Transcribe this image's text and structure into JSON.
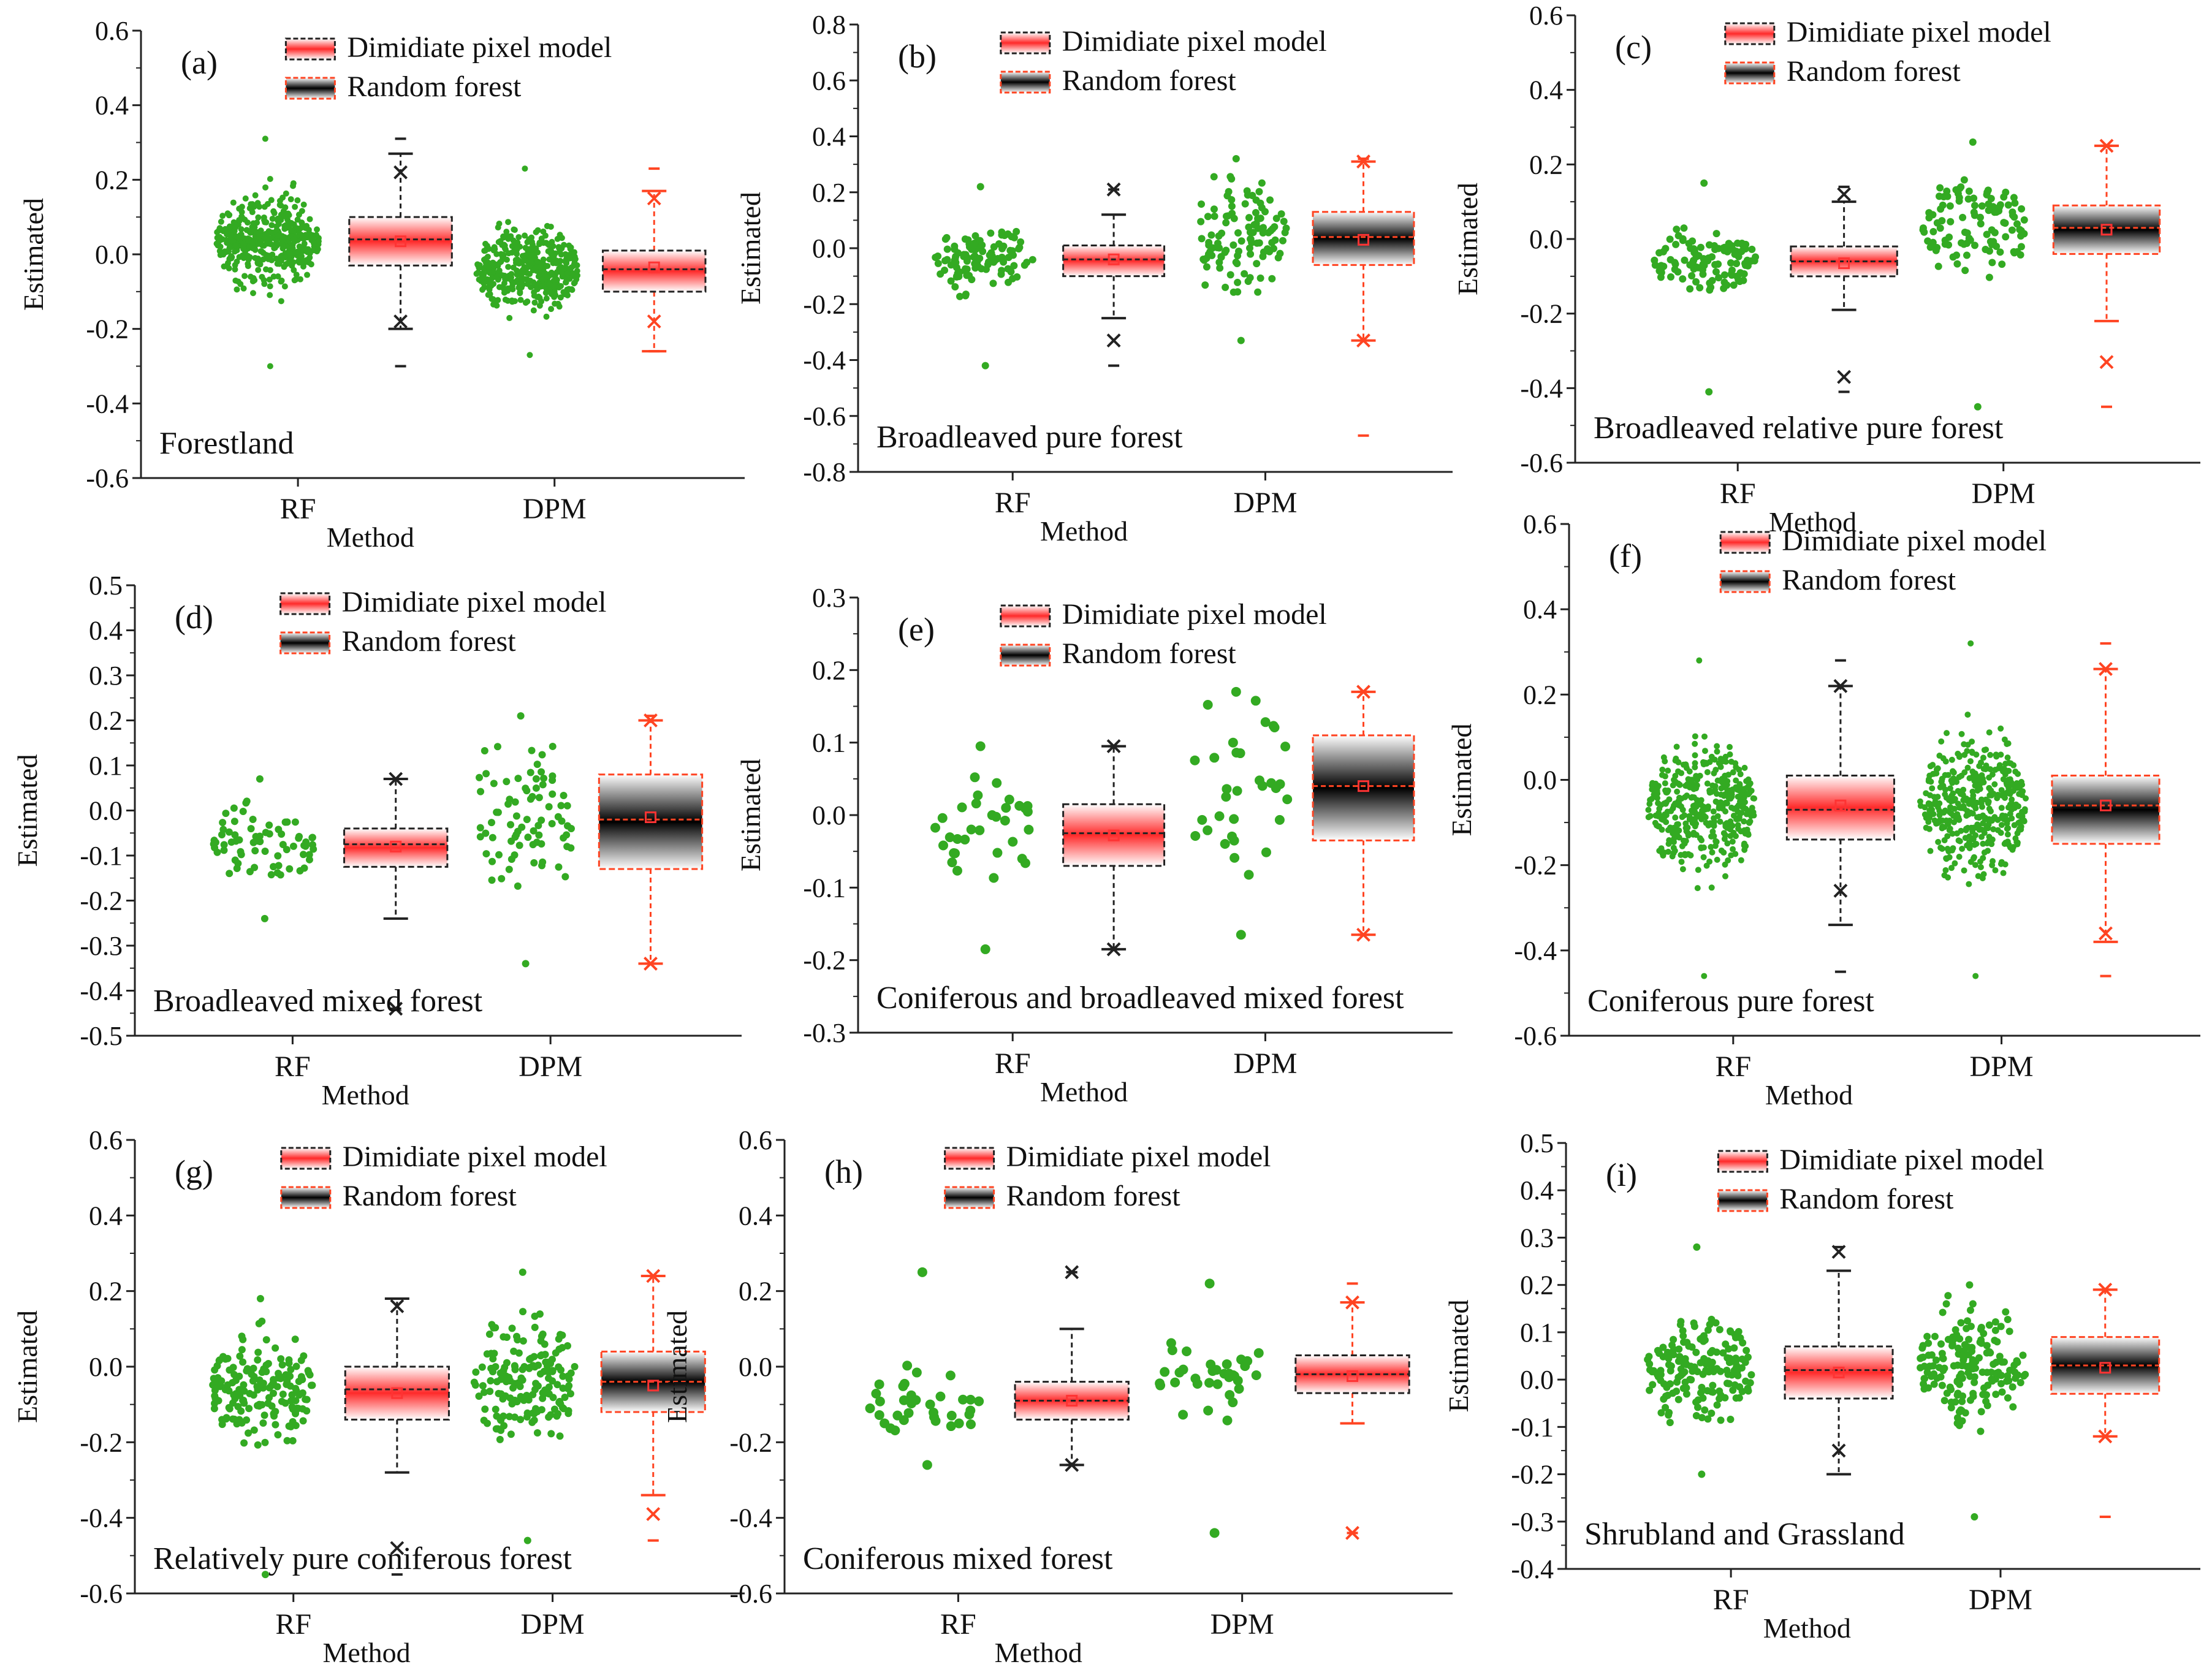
{
  "legend": {
    "dpm_label": "Dimidiate pixel model",
    "rf_label": "Random forest"
  },
  "x_axis_title": "Method",
  "y_axis_title": "Estimated",
  "colors": {
    "scatter": "#33aa22",
    "red": "#ff3333",
    "black": "#111111",
    "dpm_whisker": "#ff4422"
  },
  "chart_data": [
    {
      "tag": "(a)",
      "title": "Forestland",
      "type": "box-scatter",
      "categories": [
        "RF",
        "DPM"
      ],
      "yticks": [
        "0.6",
        "0.4",
        "0.2",
        "0.0",
        "-0.2",
        "-0.4",
        "-0.6"
      ],
      "ylim": [
        -0.6,
        0.6
      ],
      "rf": {
        "mean": 0.035,
        "q1": -0.03,
        "median": 0.04,
        "q3": 0.1,
        "lo": -0.2,
        "hi": 0.27,
        "x1": -0.18,
        "x99": 0.22,
        "min": -0.3,
        "max": 0.31,
        "lo_points": -0.3,
        "hi_points": 0.31,
        "n": 420,
        "style": "red"
      },
      "dpm": {
        "mean": -0.035,
        "q1": -0.1,
        "median": -0.04,
        "q3": 0.01,
        "lo": -0.26,
        "hi": 0.17,
        "x1": -0.18,
        "x99": 0.15,
        "min": -0.26,
        "max": 0.23,
        "lo_points": -0.27,
        "hi_points": 0.23,
        "n": 420,
        "style": "red"
      }
    },
    {
      "tag": "(b)",
      "title": "Broadleaved pure forest",
      "type": "box-scatter",
      "categories": [
        "RF",
        "DPM"
      ],
      "yticks": [
        "0.8",
        "0.6",
        "0.4",
        "0.2",
        "0.0",
        "-0.2",
        "-0.4",
        "-0.6",
        "-0.8"
      ],
      "ylim": [
        -0.8,
        0.8
      ],
      "rf": {
        "mean": -0.04,
        "q1": -0.1,
        "median": -0.04,
        "q3": 0.01,
        "lo": -0.25,
        "hi": 0.12,
        "x1": -0.33,
        "x99": 0.21,
        "min": -0.42,
        "max": 0.21,
        "lo_points": -0.42,
        "hi_points": 0.22,
        "n": 110,
        "style": "red"
      },
      "dpm": {
        "mean": 0.03,
        "q1": -0.06,
        "median": 0.04,
        "q3": 0.13,
        "lo": -0.33,
        "hi": 0.31,
        "x1": -0.33,
        "x99": 0.31,
        "min": -0.67,
        "max": 0.32,
        "lo_points": -0.33,
        "hi_points": 0.32,
        "n": 110,
        "style": "black"
      }
    },
    {
      "tag": "(c)",
      "title": "Broadleaved relative pure forest",
      "type": "box-scatter",
      "categories": [
        "RF",
        "DPM"
      ],
      "yticks": [
        "0.6",
        "0.4",
        "0.2",
        "0.0",
        "-0.2",
        "-0.4",
        "-0.6"
      ],
      "ylim": [
        -0.6,
        0.6
      ],
      "rf": {
        "mean": -0.065,
        "q1": -0.1,
        "median": -0.06,
        "q3": -0.02,
        "lo": -0.19,
        "hi": 0.1,
        "x1": -0.37,
        "x99": 0.12,
        "min": -0.41,
        "max": 0.14,
        "lo_points": -0.41,
        "hi_points": 0.15,
        "n": 110,
        "style": "red"
      },
      "dpm": {
        "mean": 0.025,
        "q1": -0.04,
        "median": 0.03,
        "q3": 0.09,
        "lo": -0.22,
        "hi": 0.25,
        "x1": -0.33,
        "x99": 0.25,
        "min": -0.45,
        "max": 0.25,
        "lo_points": -0.45,
        "hi_points": 0.26,
        "n": 110,
        "style": "black"
      }
    },
    {
      "tag": "(d)",
      "title": "Broadleaved mixed forest",
      "type": "box-scatter",
      "categories": [
        "RF",
        "DPM"
      ],
      "yticks": [
        "0.5",
        "0.4",
        "0.3",
        "0.2",
        "0.1",
        "0.0",
        "-0.1",
        "-0.2",
        "-0.3",
        "-0.4",
        "-0.5"
      ],
      "ylim": [
        -0.5,
        0.5
      ],
      "rf": {
        "mean": -0.08,
        "q1": -0.125,
        "median": -0.075,
        "q3": -0.04,
        "lo": -0.24,
        "hi": 0.07,
        "x1": -0.44,
        "x99": 0.07,
        "min": -0.44,
        "max": 0.07,
        "lo_points": -0.24,
        "hi_points": 0.07,
        "n": 70,
        "style": "red"
      },
      "dpm": {
        "mean": -0.015,
        "q1": -0.13,
        "median": -0.02,
        "q3": 0.08,
        "lo": -0.34,
        "hi": 0.2,
        "x1": -0.34,
        "x99": 0.2,
        "min": -0.34,
        "max": 0.21,
        "lo_points": -0.34,
        "hi_points": 0.21,
        "n": 80,
        "style": "black"
      }
    },
    {
      "tag": "(e)",
      "title": "Coniferous and broadleaved mixed forest",
      "type": "box-scatter",
      "categories": [
        "RF",
        "DPM"
      ],
      "yticks": [
        "0.3",
        "0.2",
        "0.1",
        "0.0",
        "-0.1",
        "-0.2",
        "-0.3"
      ],
      "ylim": [
        -0.3,
        0.3
      ],
      "rf": {
        "mean": -0.028,
        "q1": -0.07,
        "median": -0.025,
        "q3": 0.015,
        "lo": -0.185,
        "hi": 0.095,
        "x1": -0.185,
        "x99": 0.095,
        "min": -0.185,
        "max": 0.095,
        "lo_points": -0.185,
        "hi_points": 0.095,
        "n": 32,
        "style": "red"
      },
      "dpm": {
        "mean": 0.04,
        "q1": -0.035,
        "median": 0.04,
        "q3": 0.11,
        "lo": -0.165,
        "hi": 0.17,
        "x1": -0.165,
        "x99": 0.17,
        "min": -0.165,
        "max": 0.17,
        "lo_points": -0.165,
        "hi_points": 0.17,
        "n": 32,
        "style": "black"
      }
    },
    {
      "tag": "(f)",
      "title": "Coniferous pure forest",
      "type": "box-scatter",
      "categories": [
        "RF",
        "DPM"
      ],
      "yticks": [
        "0.6",
        "0.4",
        "0.2",
        "0.0",
        "-0.2",
        "-0.4",
        "-0.6"
      ],
      "ylim": [
        -0.6,
        0.6
      ],
      "rf": {
        "mean": -0.06,
        "q1": -0.14,
        "median": -0.07,
        "q3": 0.01,
        "lo": -0.34,
        "hi": 0.22,
        "x1": -0.26,
        "x99": 0.22,
        "min": -0.45,
        "max": 0.28,
        "lo_points": -0.46,
        "hi_points": 0.28,
        "n": 400,
        "style": "red"
      },
      "dpm": {
        "mean": -0.06,
        "q1": -0.15,
        "median": -0.06,
        "q3": 0.01,
        "lo": -0.38,
        "hi": 0.26,
        "x1": -0.36,
        "x99": 0.26,
        "min": -0.46,
        "max": 0.32,
        "lo_points": -0.46,
        "hi_points": 0.32,
        "n": 400,
        "style": "black"
      }
    },
    {
      "tag": "(g)",
      "title": "Relatively pure coniferous forest",
      "type": "box-scatter",
      "categories": [
        "RF",
        "DPM"
      ],
      "yticks": [
        "0.6",
        "0.4",
        "0.2",
        "0.0",
        "-0.2",
        "-0.4",
        "-0.6"
      ],
      "ylim": [
        -0.6,
        0.6
      ],
      "rf": {
        "mean": -0.07,
        "q1": -0.14,
        "median": -0.06,
        "q3": 0.0,
        "lo": -0.28,
        "hi": 0.18,
        "x1": -0.48,
        "x99": 0.16,
        "min": -0.55,
        "max": 0.18,
        "lo_points": -0.55,
        "hi_points": 0.18,
        "n": 170,
        "style": "red"
      },
      "dpm": {
        "mean": -0.05,
        "q1": -0.12,
        "median": -0.04,
        "q3": 0.04,
        "lo": -0.34,
        "hi": 0.24,
        "x1": -0.39,
        "x99": 0.24,
        "min": -0.46,
        "max": 0.24,
        "lo_points": -0.46,
        "hi_points": 0.25,
        "n": 170,
        "style": "black"
      }
    },
    {
      "tag": "(h)",
      "title": "Coniferous mixed forest",
      "type": "box-scatter",
      "categories": [
        "RF",
        "DPM"
      ],
      "yticks": [
        "0.6",
        "0.4",
        "0.2",
        "0.0",
        "-0.2",
        "-0.4",
        "-0.6"
      ],
      "ylim": [
        -0.6,
        0.6
      ],
      "rf": {
        "mean": -0.09,
        "q1": -0.14,
        "median": -0.09,
        "q3": -0.04,
        "lo": -0.26,
        "hi": 0.1,
        "x1": -0.26,
        "x99": 0.25,
        "min": -0.26,
        "max": 0.25,
        "lo_points": -0.26,
        "hi_points": 0.25,
        "n": 34,
        "style": "red"
      },
      "dpm": {
        "mean": -0.025,
        "q1": -0.07,
        "median": -0.02,
        "q3": 0.03,
        "lo": -0.15,
        "hi": 0.17,
        "x1": -0.44,
        "x99": 0.17,
        "min": -0.44,
        "max": 0.22,
        "lo_points": -0.44,
        "hi_points": 0.22,
        "n": 34,
        "style": "red"
      }
    },
    {
      "tag": "(i)",
      "title": "Shrubland and Grassland",
      "type": "box-scatter",
      "categories": [
        "RF",
        "DPM"
      ],
      "yticks": [
        "0.5",
        "0.4",
        "0.3",
        "0.2",
        "0.1",
        "0.0",
        "-0.1",
        "-0.2",
        "-0.3",
        "-0.4"
      ],
      "ylim": [
        -0.4,
        0.5
      ],
      "rf": {
        "mean": 0.015,
        "q1": -0.04,
        "median": 0.02,
        "q3": 0.07,
        "lo": -0.2,
        "hi": 0.23,
        "x1": -0.15,
        "x99": 0.27,
        "min": -0.2,
        "max": 0.28,
        "lo_points": -0.2,
        "hi_points": 0.28,
        "n": 170,
        "style": "red"
      },
      "dpm": {
        "mean": 0.025,
        "q1": -0.03,
        "median": 0.03,
        "q3": 0.09,
        "lo": -0.12,
        "hi": 0.19,
        "x1": -0.12,
        "x99": 0.19,
        "min": -0.29,
        "max": 0.19,
        "lo_points": -0.29,
        "hi_points": 0.2,
        "n": 170,
        "style": "black"
      }
    }
  ]
}
